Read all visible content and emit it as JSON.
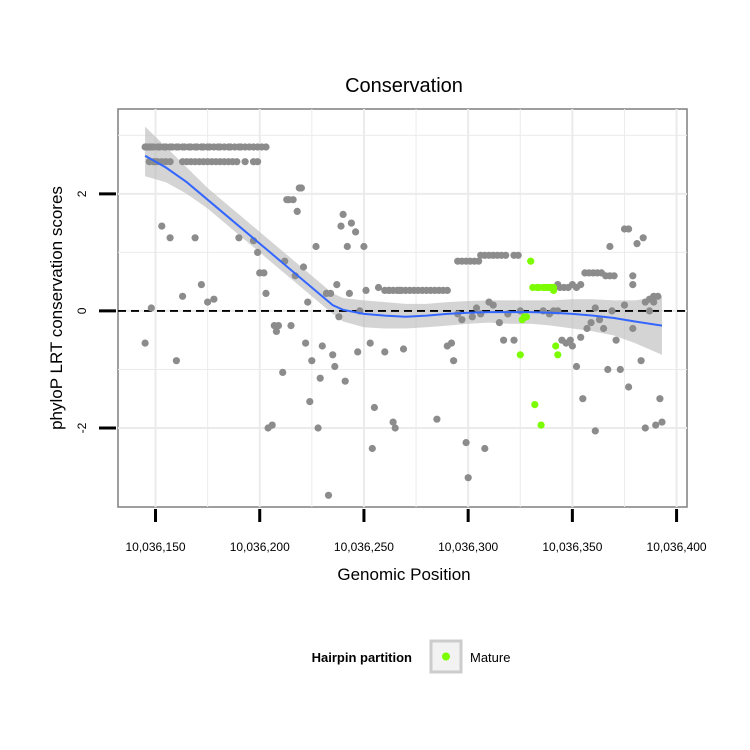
{
  "chart_data": {
    "type": "scatter",
    "title": "Conservation",
    "xlabel": "Genomic Position",
    "ylabel": "phyloP LRT conservation scores",
    "xlim": [
      10036132,
      10036405
    ],
    "ylim": [
      -3.35,
      3.45
    ],
    "x_ticks": [
      10036150,
      10036200,
      10036250,
      10036300,
      10036350,
      10036400
    ],
    "x_tick_labels": [
      "10,036,150",
      "10,036,200",
      "10,036,250",
      "10,036,300",
      "10,036,350",
      "10,036,400"
    ],
    "y_ticks": [
      -2,
      0,
      2
    ],
    "y_tick_labels": [
      "-2",
      "0",
      "2"
    ],
    "reference_line": {
      "y": 0,
      "style": "dashed"
    },
    "legend": {
      "title": "Hairpin partition",
      "entries": [
        {
          "label": "Mature",
          "color": "#7cfc00"
        }
      ]
    },
    "colors": {
      "points": "#8c8c8c",
      "mature": "#7cfc00",
      "smooth": "#3366ff",
      "band": "#bdbdbd",
      "grid": "#ebebeb",
      "panel_border": "#7f7f7f"
    },
    "series": [
      {
        "name": "Positions",
        "points": [
          [
            10036145,
            2.8
          ],
          [
            10036146,
            2.8
          ],
          [
            10036147,
            2.8
          ],
          [
            10036148,
            2.8
          ],
          [
            10036149,
            2.8
          ],
          [
            10036151,
            2.8
          ],
          [
            10036152,
            2.8
          ],
          [
            10036154,
            2.8
          ],
          [
            10036155,
            2.8
          ],
          [
            10036157,
            2.8
          ],
          [
            10036158,
            2.8
          ],
          [
            10036160,
            2.8
          ],
          [
            10036161,
            2.8
          ],
          [
            10036163,
            2.8
          ],
          [
            10036164,
            2.8
          ],
          [
            10036166,
            2.8
          ],
          [
            10036167,
            2.8
          ],
          [
            10036169,
            2.8
          ],
          [
            10036170,
            2.8
          ],
          [
            10036172,
            2.8
          ],
          [
            10036173,
            2.8
          ],
          [
            10036175,
            2.8
          ],
          [
            10036176,
            2.8
          ],
          [
            10036178,
            2.8
          ],
          [
            10036180,
            2.8
          ],
          [
            10036181,
            2.8
          ],
          [
            10036183,
            2.8
          ],
          [
            10036185,
            2.8
          ],
          [
            10036186,
            2.8
          ],
          [
            10036188,
            2.8
          ],
          [
            10036190,
            2.8
          ],
          [
            10036191,
            2.8
          ],
          [
            10036193,
            2.8
          ],
          [
            10036195,
            2.8
          ],
          [
            10036197,
            2.8
          ],
          [
            10036199,
            2.8
          ],
          [
            10036201,
            2.8
          ],
          [
            10036203,
            2.8
          ],
          [
            10036147,
            2.55
          ],
          [
            10036149,
            2.55
          ],
          [
            10036151,
            2.55
          ],
          [
            10036153,
            2.55
          ],
          [
            10036155,
            2.55
          ],
          [
            10036157,
            2.55
          ],
          [
            10036163,
            2.55
          ],
          [
            10036165,
            2.55
          ],
          [
            10036167,
            2.55
          ],
          [
            10036169,
            2.55
          ],
          [
            10036171,
            2.55
          ],
          [
            10036173,
            2.55
          ],
          [
            10036175,
            2.55
          ],
          [
            10036177,
            2.55
          ],
          [
            10036179,
            2.55
          ],
          [
            10036181,
            2.55
          ],
          [
            10036183,
            2.55
          ],
          [
            10036185,
            2.55
          ],
          [
            10036187,
            2.55
          ],
          [
            10036189,
            2.55
          ],
          [
            10036193,
            2.55
          ],
          [
            10036197,
            2.55
          ],
          [
            10036199,
            2.55
          ],
          [
            10036145,
            -0.55
          ],
          [
            10036148,
            0.05
          ],
          [
            10036150,
            2.55
          ],
          [
            10036153,
            1.45
          ],
          [
            10036157,
            1.25
          ],
          [
            10036160,
            -0.85
          ],
          [
            10036163,
            0.25
          ],
          [
            10036169,
            1.25
          ],
          [
            10036172,
            0.45
          ],
          [
            10036175,
            0.15
          ],
          [
            10036178,
            0.2
          ],
          [
            10036190,
            1.25
          ],
          [
            10036197,
            1.2
          ],
          [
            10036199,
            1.0
          ],
          [
            10036200,
            0.65
          ],
          [
            10036202,
            0.65
          ],
          [
            10036203,
            0.3
          ],
          [
            10036204,
            -2.0
          ],
          [
            10036206,
            -1.95
          ],
          [
            10036207,
            -0.25
          ],
          [
            10036208,
            -0.35
          ],
          [
            10036209,
            -0.25
          ],
          [
            10036211,
            -1.05
          ],
          [
            10036212,
            0.85
          ],
          [
            10036213,
            1.9
          ],
          [
            10036214,
            1.9
          ],
          [
            10036215,
            -0.25
          ],
          [
            10036216,
            1.9
          ],
          [
            10036217,
            0.6
          ],
          [
            10036218,
            1.7
          ],
          [
            10036219,
            2.1
          ],
          [
            10036220,
            2.1
          ],
          [
            10036221,
            0.75
          ],
          [
            10036222,
            -0.55
          ],
          [
            10036223,
            0.15
          ],
          [
            10036224,
            -1.55
          ],
          [
            10036225,
            -0.85
          ],
          [
            10036227,
            1.1
          ],
          [
            10036228,
            -2.0
          ],
          [
            10036229,
            -1.15
          ],
          [
            10036230,
            -0.6
          ],
          [
            10036232,
            0.3
          ],
          [
            10036233,
            -3.15
          ],
          [
            10036234,
            0.3
          ],
          [
            10036235,
            -0.75
          ],
          [
            10036236,
            -0.95
          ],
          [
            10036237,
            0.45
          ],
          [
            10036238,
            -0.1
          ],
          [
            10036239,
            1.45
          ],
          [
            10036240,
            1.65
          ],
          [
            10036241,
            -1.2
          ],
          [
            10036242,
            1.1
          ],
          [
            10036243,
            0.3
          ],
          [
            10036244,
            1.5
          ],
          [
            10036246,
            1.35
          ],
          [
            10036247,
            -0.7
          ],
          [
            10036248,
            0.0
          ],
          [
            10036250,
            1.1
          ],
          [
            10036251,
            0.35
          ],
          [
            10036253,
            -0.55
          ],
          [
            10036254,
            -2.35
          ],
          [
            10036255,
            -1.65
          ],
          [
            10036257,
            0.4
          ],
          [
            10036260,
            -0.7
          ],
          [
            10036262,
            0.35
          ],
          [
            10036264,
            -1.9
          ],
          [
            10036265,
            -2.0
          ],
          [
            10036267,
            0.35
          ],
          [
            10036269,
            -0.65
          ],
          [
            10036260,
            0.35
          ],
          [
            10036262,
            0.35
          ],
          [
            10036264,
            0.35
          ],
          [
            10036266,
            0.35
          ],
          [
            10036268,
            0.35
          ],
          [
            10036270,
            0.35
          ],
          [
            10036272,
            0.35
          ],
          [
            10036274,
            0.35
          ],
          [
            10036276,
            0.35
          ],
          [
            10036278,
            0.35
          ],
          [
            10036280,
            0.35
          ],
          [
            10036282,
            0.35
          ],
          [
            10036284,
            0.35
          ],
          [
            10036286,
            0.35
          ],
          [
            10036288,
            0.35
          ],
          [
            10036290,
            0.35
          ],
          [
            10036285,
            -1.85
          ],
          [
            10036290,
            -0.6
          ],
          [
            10036292,
            -0.55
          ],
          [
            10036293,
            -0.85
          ],
          [
            10036295,
            -0.05
          ],
          [
            10036297,
            -0.15
          ],
          [
            10036299,
            -2.25
          ],
          [
            10036300,
            -2.85
          ],
          [
            10036302,
            -0.1
          ],
          [
            10036304,
            0.05
          ],
          [
            10036306,
            -0.05
          ],
          [
            10036308,
            -2.35
          ],
          [
            10036310,
            0.15
          ],
          [
            10036312,
            0.1
          ],
          [
            10036315,
            -0.2
          ],
          [
            10036317,
            -0.5
          ],
          [
            10036319,
            -0.05
          ],
          [
            10036322,
            -0.5
          ],
          [
            10036325,
            0.0
          ],
          [
            10036295,
            0.85
          ],
          [
            10036297,
            0.85
          ],
          [
            10036299,
            0.85
          ],
          [
            10036301,
            0.85
          ],
          [
            10036303,
            0.85
          ],
          [
            10036305,
            0.85
          ],
          [
            10036306,
            0.95
          ],
          [
            10036308,
            0.95
          ],
          [
            10036310,
            0.95
          ],
          [
            10036312,
            0.95
          ],
          [
            10036314,
            0.95
          ],
          [
            10036316,
            0.95
          ],
          [
            10036318,
            0.95
          ],
          [
            10036322,
            0.95
          ],
          [
            10036324,
            0.95
          ],
          [
            10036336,
            0.0
          ],
          [
            10036339,
            -0.05
          ],
          [
            10036341,
            0.0
          ],
          [
            10036343,
            0.0
          ],
          [
            10036345,
            -0.5
          ],
          [
            10036347,
            -0.55
          ],
          [
            10036349,
            -0.5
          ],
          [
            10036350,
            -0.6
          ],
          [
            10036352,
            -0.95
          ],
          [
            10036354,
            -0.45
          ],
          [
            10036355,
            -1.5
          ],
          [
            10036357,
            -0.3
          ],
          [
            10036359,
            -0.2
          ],
          [
            10036361,
            -2.05
          ],
          [
            10036363,
            -0.15
          ],
          [
            10036365,
            -0.3
          ],
          [
            10036367,
            -1.0
          ],
          [
            10036369,
            0.0
          ],
          [
            10036371,
            -0.5
          ],
          [
            10036373,
            -1.0
          ],
          [
            10036375,
            0.1
          ],
          [
            10036377,
            -1.3
          ],
          [
            10036379,
            -0.3
          ],
          [
            10036381,
            1.15
          ],
          [
            10036383,
            -0.85
          ],
          [
            10036384,
            1.25
          ],
          [
            10036385,
            -2.0
          ],
          [
            10036387,
            0.0
          ],
          [
            10036389,
            0.15
          ],
          [
            10036390,
            -1.95
          ],
          [
            10036392,
            -1.5
          ],
          [
            10036393,
            -1.9
          ],
          [
            10036391,
            0.25
          ],
          [
            10036343,
            0.45
          ],
          [
            10036344,
            0.4
          ],
          [
            10036346,
            0.4
          ],
          [
            10036348,
            0.4
          ],
          [
            10036350,
            0.45
          ],
          [
            10036352,
            0.4
          ],
          [
            10036354,
            0.45
          ],
          [
            10036356,
            0.65
          ],
          [
            10036358,
            0.65
          ],
          [
            10036360,
            0.65
          ],
          [
            10036362,
            0.65
          ],
          [
            10036364,
            0.65
          ],
          [
            10036366,
            0.6
          ],
          [
            10036368,
            0.6
          ],
          [
            10036370,
            0.6
          ],
          [
            10036375,
            1.4
          ],
          [
            10036377,
            1.4
          ],
          [
            10036379,
            0.6
          ],
          [
            10036385,
            0.15
          ],
          [
            10036387,
            0.2
          ],
          [
            10036389,
            0.25
          ],
          [
            10036368,
            1.1
          ],
          [
            10036361,
            0.05
          ],
          [
            10036379,
            0.45
          ]
        ]
      },
      {
        "name": "Mature",
        "points": [
          [
            10036325,
            -0.75
          ],
          [
            10036326,
            -0.15
          ],
          [
            10036327,
            -0.1
          ],
          [
            10036328,
            -0.1
          ],
          [
            10036330,
            0.85
          ],
          [
            10036331,
            0.4
          ],
          [
            10036332,
            -1.6
          ],
          [
            10036333,
            0.4
          ],
          [
            10036334,
            0.4
          ],
          [
            10036335,
            -1.95
          ],
          [
            10036336,
            0.4
          ],
          [
            10036337,
            0.4
          ],
          [
            10036338,
            0.4
          ],
          [
            10036339,
            0.4
          ],
          [
            10036340,
            0.4
          ],
          [
            10036341,
            0.4
          ],
          [
            10036341,
            0.35
          ],
          [
            10036342,
            -0.6
          ],
          [
            10036343,
            -0.75
          ]
        ]
      }
    ],
    "smooth": {
      "x": [
        10036145,
        10036155,
        10036165,
        10036175,
        10036185,
        10036195,
        10036205,
        10036215,
        10036225,
        10036235,
        10036240,
        10036250,
        10036260,
        10036270,
        10036280,
        10036290,
        10036300,
        10036310,
        10036320,
        10036330,
        10036340,
        10036350,
        10036360,
        10036370,
        10036380,
        10036393
      ],
      "y": [
        2.65,
        2.45,
        2.2,
        1.9,
        1.6,
        1.3,
        1.0,
        0.7,
        0.4,
        0.1,
        0.02,
        -0.05,
        -0.08,
        -0.1,
        -0.08,
        -0.05,
        -0.03,
        -0.02,
        -0.02,
        -0.02,
        -0.03,
        -0.05,
        -0.08,
        -0.12,
        -0.18,
        -0.25
      ],
      "lower": [
        2.3,
        2.2,
        2.0,
        1.75,
        1.45,
        1.15,
        0.85,
        0.55,
        0.25,
        -0.05,
        -0.18,
        -0.28,
        -0.3,
        -0.3,
        -0.28,
        -0.25,
        -0.22,
        -0.2,
        -0.22,
        -0.22,
        -0.25,
        -0.3,
        -0.35,
        -0.42,
        -0.55,
        -0.75
      ],
      "upper": [
        3.15,
        2.8,
        2.45,
        2.1,
        1.8,
        1.5,
        1.2,
        0.9,
        0.6,
        0.3,
        0.22,
        0.18,
        0.15,
        0.12,
        0.12,
        0.15,
        0.17,
        0.18,
        0.18,
        0.18,
        0.18,
        0.2,
        0.2,
        0.18,
        0.18,
        0.25
      ]
    }
  }
}
